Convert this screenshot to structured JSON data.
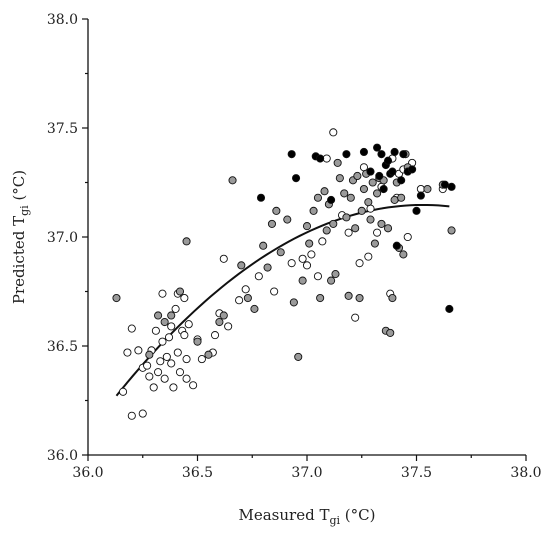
{
  "chart_data": {
    "type": "scatter",
    "xlabel": {
      "main": "Measured T",
      "sub": "gi",
      "unit": " (°C)"
    },
    "ylabel": {
      "main": "Predicted T",
      "sub": "gi",
      "unit": " (°C)"
    },
    "xlim": [
      36.0,
      38.0
    ],
    "ylim": [
      36.0,
      38.0
    ],
    "x_ticks": [
      "36.0",
      "36.5",
      "37.0",
      "37.5",
      "38.0"
    ],
    "y_ticks": [
      "36.0",
      "36.5",
      "37.0",
      "37.5",
      "38.0"
    ],
    "grid": false,
    "legend": "none",
    "colors": {
      "white": "#ffffff",
      "gray": "#9a9a9a",
      "black": "#000000",
      "edge": "#111111",
      "curve": "#111111"
    },
    "series": [
      {
        "marker": "white",
        "points": [
          [
            36.16,
            36.29
          ],
          [
            36.18,
            36.47
          ],
          [
            36.2,
            36.58
          ],
          [
            36.2,
            36.18
          ],
          [
            36.23,
            36.48
          ],
          [
            36.25,
            36.19
          ],
          [
            36.25,
            36.4
          ],
          [
            36.27,
            36.41
          ],
          [
            36.28,
            36.36
          ],
          [
            36.29,
            36.48
          ],
          [
            36.3,
            36.31
          ],
          [
            36.31,
            36.57
          ],
          [
            36.32,
            36.38
          ],
          [
            36.33,
            36.43
          ],
          [
            36.34,
            36.52
          ],
          [
            36.34,
            36.74
          ],
          [
            36.35,
            36.35
          ],
          [
            36.36,
            36.45
          ],
          [
            36.37,
            36.54
          ],
          [
            36.38,
            36.42
          ],
          [
            36.38,
            36.59
          ],
          [
            36.39,
            36.31
          ],
          [
            36.4,
            36.67
          ],
          [
            36.41,
            36.74
          ],
          [
            36.41,
            36.47
          ],
          [
            36.42,
            36.38
          ],
          [
            36.43,
            36.57
          ],
          [
            36.44,
            36.72
          ],
          [
            36.44,
            36.55
          ],
          [
            36.45,
            36.44
          ],
          [
            36.45,
            36.35
          ],
          [
            36.46,
            36.6
          ],
          [
            36.48,
            36.32
          ],
          [
            36.5,
            36.53
          ],
          [
            36.52,
            36.44
          ],
          [
            36.57,
            36.47
          ],
          [
            36.58,
            36.55
          ],
          [
            36.6,
            36.65
          ],
          [
            36.62,
            36.9
          ],
          [
            36.64,
            36.59
          ],
          [
            36.69,
            36.71
          ],
          [
            36.72,
            36.76
          ],
          [
            36.78,
            36.82
          ],
          [
            36.85,
            36.75
          ],
          [
            36.93,
            36.88
          ],
          [
            36.98,
            36.9
          ],
          [
            37.0,
            36.87
          ],
          [
            37.02,
            36.92
          ],
          [
            37.05,
            36.82
          ],
          [
            37.07,
            36.98
          ],
          [
            37.09,
            37.36
          ],
          [
            37.12,
            37.48
          ],
          [
            37.16,
            37.1
          ],
          [
            37.19,
            37.02
          ],
          [
            37.22,
            36.63
          ],
          [
            37.24,
            36.88
          ],
          [
            37.26,
            37.32
          ],
          [
            37.28,
            36.91
          ],
          [
            37.29,
            37.13
          ],
          [
            37.32,
            37.02
          ],
          [
            37.34,
            37.23
          ],
          [
            37.38,
            36.74
          ],
          [
            37.39,
            37.36
          ],
          [
            37.41,
            37.18
          ],
          [
            37.42,
            37.29
          ],
          [
            37.44,
            37.31
          ],
          [
            37.46,
            37.0
          ],
          [
            37.48,
            37.34
          ],
          [
            37.52,
            37.22
          ],
          [
            37.62,
            37.22
          ]
        ]
      },
      {
        "marker": "gray",
        "points": [
          [
            36.13,
            36.72
          ],
          [
            36.28,
            36.46
          ],
          [
            36.32,
            36.64
          ],
          [
            36.35,
            36.61
          ],
          [
            36.38,
            36.64
          ],
          [
            36.42,
            36.75
          ],
          [
            36.45,
            36.98
          ],
          [
            36.5,
            36.52
          ],
          [
            36.55,
            36.46
          ],
          [
            36.6,
            36.61
          ],
          [
            36.62,
            36.64
          ],
          [
            36.66,
            37.26
          ],
          [
            36.7,
            36.87
          ],
          [
            36.73,
            36.72
          ],
          [
            36.76,
            36.67
          ],
          [
            36.8,
            36.96
          ],
          [
            36.82,
            36.86
          ],
          [
            36.84,
            37.06
          ],
          [
            36.86,
            37.12
          ],
          [
            36.88,
            36.93
          ],
          [
            36.91,
            37.08
          ],
          [
            36.94,
            36.7
          ],
          [
            36.96,
            36.45
          ],
          [
            36.98,
            36.8
          ],
          [
            37.0,
            37.05
          ],
          [
            37.01,
            36.97
          ],
          [
            37.03,
            37.12
          ],
          [
            37.05,
            37.18
          ],
          [
            37.06,
            36.72
          ],
          [
            37.08,
            37.21
          ],
          [
            37.09,
            37.03
          ],
          [
            37.1,
            37.15
          ],
          [
            37.11,
            36.8
          ],
          [
            37.12,
            37.06
          ],
          [
            37.13,
            36.83
          ],
          [
            37.14,
            37.34
          ],
          [
            37.15,
            37.27
          ],
          [
            37.17,
            37.2
          ],
          [
            37.18,
            37.09
          ],
          [
            37.19,
            36.73
          ],
          [
            37.2,
            37.18
          ],
          [
            37.21,
            37.26
          ],
          [
            37.22,
            37.04
          ],
          [
            37.23,
            37.28
          ],
          [
            37.24,
            36.72
          ],
          [
            37.25,
            37.12
          ],
          [
            37.26,
            37.22
          ],
          [
            37.27,
            37.29
          ],
          [
            37.28,
            37.16
          ],
          [
            37.29,
            37.08
          ],
          [
            37.3,
            37.25
          ],
          [
            37.31,
            36.97
          ],
          [
            37.32,
            37.2
          ],
          [
            37.33,
            37.27
          ],
          [
            37.34,
            37.06
          ],
          [
            37.35,
            37.26
          ],
          [
            37.36,
            36.57
          ],
          [
            37.37,
            37.04
          ],
          [
            37.38,
            36.56
          ],
          [
            37.39,
            36.72
          ],
          [
            37.4,
            37.17
          ],
          [
            37.41,
            37.25
          ],
          [
            37.42,
            36.95
          ],
          [
            37.43,
            37.18
          ],
          [
            37.44,
            36.92
          ],
          [
            37.45,
            37.38
          ],
          [
            37.46,
            37.32
          ],
          [
            37.55,
            37.22
          ],
          [
            37.62,
            37.24
          ],
          [
            37.66,
            37.03
          ]
        ]
      },
      {
        "marker": "black",
        "points": [
          [
            36.79,
            37.18
          ],
          [
            36.93,
            37.38
          ],
          [
            36.95,
            37.27
          ],
          [
            37.04,
            37.37
          ],
          [
            37.06,
            37.36
          ],
          [
            37.11,
            37.17
          ],
          [
            37.18,
            37.38
          ],
          [
            37.26,
            37.39
          ],
          [
            37.29,
            37.3
          ],
          [
            37.32,
            37.41
          ],
          [
            37.33,
            37.28
          ],
          [
            37.34,
            37.38
          ],
          [
            37.35,
            37.22
          ],
          [
            37.36,
            37.33
          ],
          [
            37.37,
            37.35
          ],
          [
            37.38,
            37.29
          ],
          [
            37.39,
            37.3
          ],
          [
            37.4,
            37.39
          ],
          [
            37.41,
            36.96
          ],
          [
            37.43,
            37.26
          ],
          [
            37.44,
            37.38
          ],
          [
            37.46,
            37.3
          ],
          [
            37.48,
            37.31
          ],
          [
            37.5,
            37.12
          ],
          [
            37.52,
            37.19
          ],
          [
            37.63,
            37.24
          ],
          [
            37.66,
            37.23
          ],
          [
            37.65,
            36.67
          ]
        ]
      }
    ],
    "fit_curve": {
      "type": "quadratic",
      "x_range": [
        36.13,
        37.65
      ],
      "points": [
        [
          36.13,
          36.27
        ],
        [
          36.4,
          36.58
        ],
        [
          36.7,
          36.84
        ],
        [
          37.0,
          37.02
        ],
        [
          37.3,
          37.12
        ],
        [
          37.5,
          37.15
        ],
        [
          37.65,
          37.14
        ]
      ]
    }
  }
}
